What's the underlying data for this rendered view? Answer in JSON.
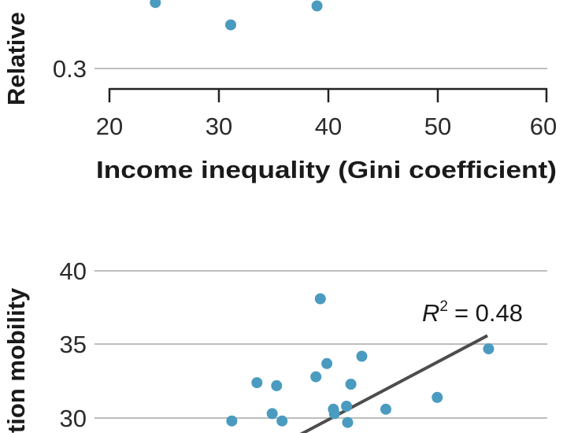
{
  "colors": {
    "point": "#4a9bbf",
    "grid": "#bdbdbd",
    "axis": "#222222",
    "trend": "#4d4d4d",
    "text": "#222222"
  },
  "chart_data": [
    {
      "type": "scatter",
      "xlabel": "Income inequality (Gini coefficient)",
      "ylabel": "Relative",
      "xlim": [
        20,
        60
      ],
      "xticks": [
        "20",
        "30",
        "40",
        "50",
        "60"
      ],
      "yticks": [
        "0.3"
      ],
      "ylim": [
        0.29,
        0.37
      ],
      "grid": "horizontal",
      "points": [
        {
          "x": 24.2,
          "y": 0.359
        },
        {
          "x": 31.1,
          "y": 0.339
        },
        {
          "x": 39.0,
          "y": 0.356
        }
      ]
    },
    {
      "type": "scatter",
      "ylabel": "tion mobility",
      "yticks": [
        "40",
        "35",
        "30"
      ],
      "xlim": [
        20,
        60
      ],
      "ylim": [
        29,
        40
      ],
      "grid": "horizontal",
      "annotation": {
        "label": "R",
        "superscript": "2",
        "value": "= 0.48"
      },
      "trendline": [
        {
          "x": 36.5,
          "y": 28.5
        },
        {
          "x": 54.6,
          "y": 35.6
        }
      ],
      "points": [
        {
          "x": 39.3,
          "y": 38.1
        },
        {
          "x": 54.7,
          "y": 34.7
        },
        {
          "x": 43.1,
          "y": 34.2
        },
        {
          "x": 39.9,
          "y": 33.7
        },
        {
          "x": 38.9,
          "y": 32.8
        },
        {
          "x": 33.5,
          "y": 32.4
        },
        {
          "x": 35.3,
          "y": 32.2
        },
        {
          "x": 42.1,
          "y": 32.3
        },
        {
          "x": 50.0,
          "y": 31.4
        },
        {
          "x": 41.7,
          "y": 30.8
        },
        {
          "x": 40.5,
          "y": 30.6
        },
        {
          "x": 45.3,
          "y": 30.6
        },
        {
          "x": 34.9,
          "y": 30.3
        },
        {
          "x": 40.6,
          "y": 30.3
        },
        {
          "x": 31.2,
          "y": 29.8
        },
        {
          "x": 35.8,
          "y": 29.8
        },
        {
          "x": 41.8,
          "y": 29.7
        }
      ]
    }
  ]
}
